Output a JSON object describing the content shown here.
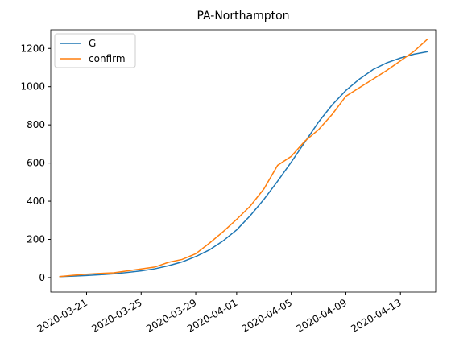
{
  "chart_data": {
    "type": "line",
    "title": "PA-Northampton",
    "x": [
      "2020-03-19",
      "2020-03-20",
      "2020-03-21",
      "2020-03-22",
      "2020-03-23",
      "2020-03-24",
      "2020-03-25",
      "2020-03-26",
      "2020-03-27",
      "2020-03-28",
      "2020-03-29",
      "2020-03-30",
      "2020-03-31",
      "2020-04-01",
      "2020-04-02",
      "2020-04-03",
      "2020-04-04",
      "2020-04-05",
      "2020-04-06",
      "2020-04-07",
      "2020-04-08",
      "2020-04-09",
      "2020-04-10",
      "2020-04-11",
      "2020-04-12",
      "2020-04-13",
      "2020-04-14",
      "2020-04-15"
    ],
    "series": [
      {
        "name": "G",
        "color": "#1f77b4",
        "values": [
          5,
          8,
          11,
          15,
          20,
          27,
          35,
          46,
          62,
          82,
          110,
          145,
          192,
          250,
          325,
          410,
          505,
          605,
          710,
          815,
          905,
          980,
          1040,
          1090,
          1125,
          1150,
          1170,
          1183
        ]
      },
      {
        "name": "confirm",
        "color": "#ff7f0e",
        "values": [
          5,
          12,
          18,
          22,
          25,
          35,
          45,
          55,
          80,
          95,
          125,
          180,
          240,
          305,
          375,
          465,
          588,
          635,
          715,
          775,
          855,
          950,
          995,
          1040,
          1085,
          1135,
          1185,
          1250
        ]
      }
    ],
    "xlim": [
      "2020-03-18T09:00",
      "2020-04-15T14:00"
    ],
    "xticks": [
      "2020-03-21",
      "2020-03-25",
      "2020-03-29",
      "2020-04-01",
      "2020-04-05",
      "2020-04-09",
      "2020-04-13"
    ],
    "ylim": [
      -76,
      1298
    ],
    "yticks": [
      0,
      200,
      400,
      600,
      800,
      1000,
      1200
    ],
    "legend": "upper left"
  }
}
